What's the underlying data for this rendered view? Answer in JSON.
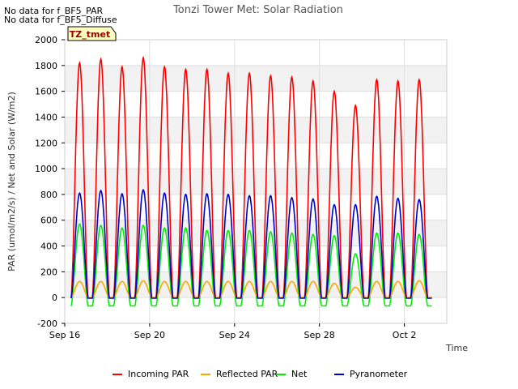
{
  "notes": [
    "No data for f_BF5_PAR",
    "No data for f_BF5_Diffuse"
  ],
  "site_tag": "TZ_tmet",
  "chart_data": {
    "type": "line",
    "title": "Tonzi Tower Met: Solar Radiation",
    "xlabel": "Time",
    "ylabel": "PAR (umol/m2/s) / Net and Solar (W/m2)",
    "ylim": [
      -200,
      2000
    ],
    "yticks": [
      -200,
      0,
      200,
      400,
      600,
      800,
      1000,
      1200,
      1400,
      1600,
      1800,
      2000
    ],
    "xlim": [
      0,
      18
    ],
    "xticks": [
      {
        "value": 0,
        "label": "Sep 16"
      },
      {
        "value": 4,
        "label": "Sep 20"
      },
      {
        "value": 8,
        "label": "Sep 24"
      },
      {
        "value": 12,
        "label": "Sep 28"
      },
      {
        "value": 16,
        "label": "Oct 2"
      }
    ],
    "legend_position": "bottom",
    "series": [
      {
        "name": "Incoming PAR",
        "color": "#ff0000",
        "daily_peaks": [
          1820,
          1850,
          1790,
          1860,
          1790,
          1770,
          1770,
          1740,
          1740,
          1720,
          1710,
          1680,
          1600,
          1490,
          1690,
          1680,
          1690
        ],
        "night_value": 0
      },
      {
        "name": "Reflected PAR",
        "color": "#ffa500",
        "daily_peaks": [
          125,
          125,
          125,
          130,
          125,
          125,
          125,
          125,
          125,
          125,
          125,
          125,
          110,
          80,
          125,
          125,
          130
        ],
        "night_value": 0
      },
      {
        "name": "Net",
        "color": "#00ee00",
        "daily_peaks": [
          570,
          560,
          540,
          560,
          540,
          540,
          520,
          520,
          520,
          510,
          500,
          490,
          480,
          340,
          500,
          500,
          490
        ],
        "night_value": -65
      },
      {
        "name": "Pyranometer",
        "color": "#0000cc",
        "daily_peaks": [
          810,
          830,
          805,
          835,
          810,
          800,
          805,
          800,
          790,
          790,
          775,
          765,
          720,
          720,
          785,
          770,
          760
        ],
        "night_value": -5
      }
    ],
    "day_start_offset": 0.15,
    "peak_offset": 0.55,
    "day_end_offset": 0.95
  }
}
